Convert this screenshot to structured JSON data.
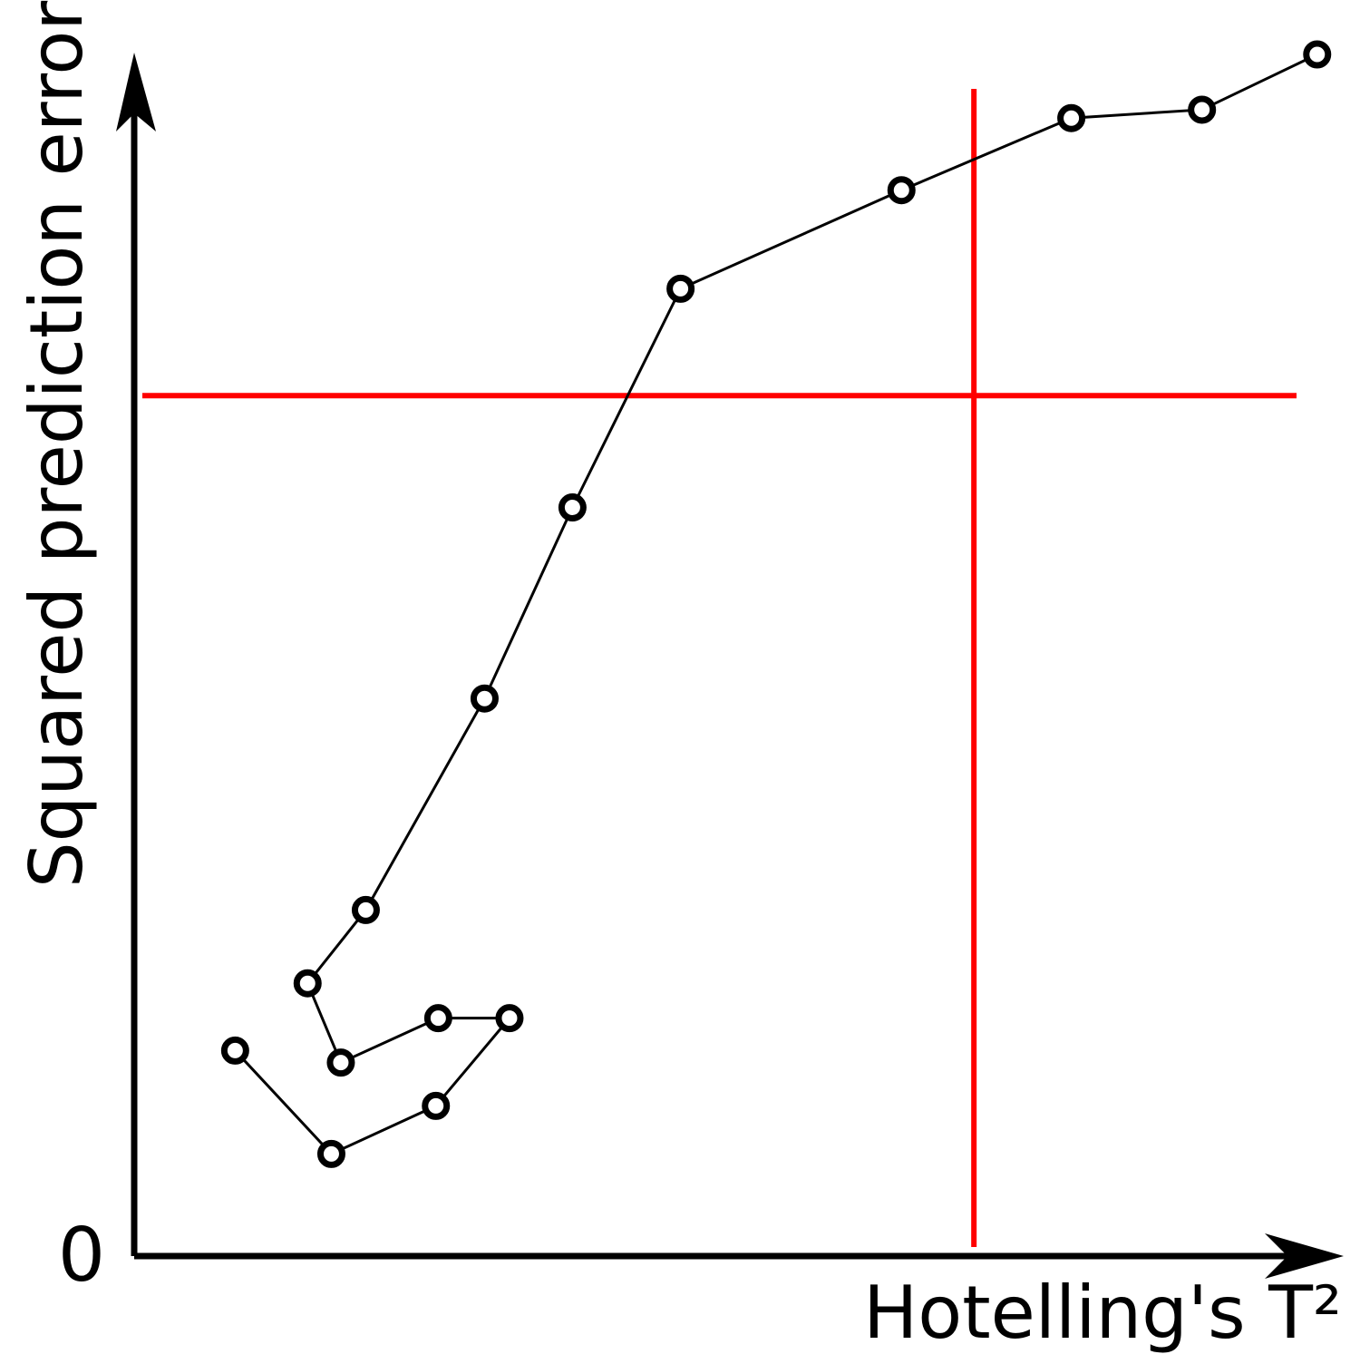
{
  "chart_data": {
    "type": "line",
    "x_label": "Hotelling's T²",
    "y_label": "Squared prediction error",
    "x": [
      8.5,
      16.6,
      25.4,
      31.6,
      25.6,
      17.4,
      14.6,
      19.5,
      29.5,
      36.9,
      46.0,
      64.6,
      78.9,
      89.9,
      99.6
    ],
    "values": [
      17.1,
      8.5,
      12.5,
      19.8,
      19.8,
      16.1,
      22.7,
      28.8,
      46.4,
      62.3,
      80.5,
      88.7,
      94.7,
      95.4,
      100.0
    ],
    "color": "#000000",
    "xlim": [
      0,
      100
    ],
    "ylim": [
      0,
      100
    ],
    "yticks": [
      0
    ],
    "control_limits": {
      "x": 70.7,
      "y": 71.6,
      "color": "#ff0000"
    }
  }
}
